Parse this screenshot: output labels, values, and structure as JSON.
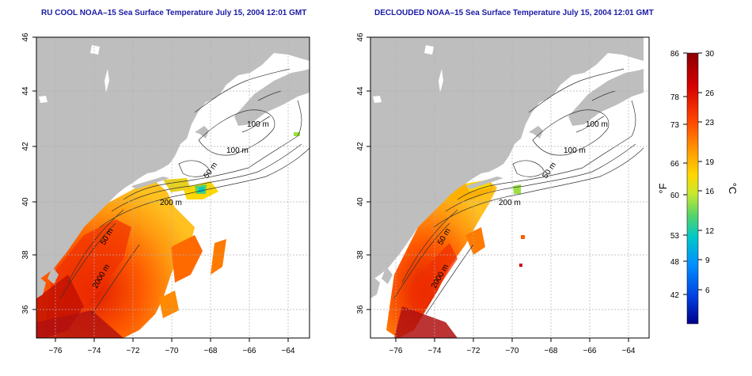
{
  "panels": [
    {
      "title": "RU COOL NOAA–15 Sea Surface Temperature July 15, 2004 12:01 GMT",
      "x_ticks": [
        "−76",
        "−74",
        "−72",
        "−70",
        "−68",
        "−66",
        "−64"
      ],
      "y_ticks": [
        "46",
        "44",
        "42",
        "40",
        "38",
        "36"
      ],
      "contour_labels": [
        "100 m",
        "100 m",
        "50 m",
        "200 m",
        "50 m",
        "2000 m"
      ]
    },
    {
      "title": "DECLOUDED NOAA–15 Sea Surface Temperature July 15, 2004 12:01 GMT",
      "x_ticks": [
        "−76",
        "−74",
        "−72",
        "−70",
        "−68",
        "−66",
        "−64"
      ],
      "y_ticks": [
        "46",
        "44",
        "42",
        "40",
        "38",
        "36"
      ],
      "contour_labels": [
        "100 m",
        "100 m",
        "50 m",
        "200 m",
        "50 m",
        "2000 m"
      ]
    }
  ],
  "colorbar": {
    "f_ticks": [
      "86",
      "78",
      "73",
      "66",
      "60",
      "53",
      "48",
      "42"
    ],
    "c_ticks": [
      "30",
      "26",
      "23",
      "19",
      "16",
      "12",
      "9",
      "6"
    ],
    "f_label": "°F",
    "c_label": "°C",
    "colors": [
      "#8b0000",
      "#d40000",
      "#ff4500",
      "#ff9900",
      "#ffd700",
      "#c8e830",
      "#55d36a",
      "#00c8c8",
      "#0090ff",
      "#0040e0",
      "#00008b"
    ]
  },
  "colors": {
    "land": "#bebebe",
    "grid": "#b0b0b0",
    "title": "#1a1aa6",
    "ocean": "#ffffff"
  }
}
